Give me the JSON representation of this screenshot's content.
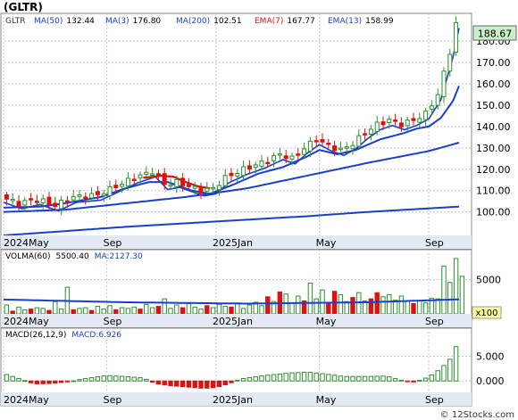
{
  "header": {
    "title": "(GLTR)"
  },
  "footer": {
    "credit": "© 12Stocks.com"
  },
  "colors": {
    "frame": "#888888",
    "grid": "#c8c8c8",
    "price_label_bg": "#c9f0c9",
    "ma_blue": "#1a3fcc",
    "ema_red": "#dd1111",
    "candle_up": "#2c8f2c",
    "bar_up_fill": "#ffffff",
    "bar_up_stroke": "#2c8f2c",
    "bar_down": "#dd1111",
    "axis_bg": "#e4eaf4"
  },
  "chart_data": [
    {
      "type": "candlestick",
      "legend": [
        {
          "label": "GLTR",
          "color": "#333333"
        },
        {
          "label": "MA(50)",
          "value": "132.44",
          "color": "#1a3fcc"
        },
        {
          "label": "MA(3)",
          "value": "176.80",
          "color": "#1a3fcc"
        },
        {
          "label": "MA(200)",
          "value": "102.51",
          "color": "#1a3fcc"
        },
        {
          "label": "EMA(7)",
          "value": "167.77",
          "color": "#dd1111"
        },
        {
          "label": "EMA(13)",
          "value": "158.99",
          "color": "#1a3fcc"
        }
      ],
      "last_price_label": "188.67",
      "last_price": 188.67,
      "ylim": [
        89,
        193
      ],
      "yticks": [
        100,
        110,
        120,
        130,
        140,
        150,
        160,
        170,
        180
      ],
      "ytick_labels": [
        "100.00",
        "110.00",
        "120.00",
        "130.00",
        "140.00",
        "150.00",
        "160.00",
        "170.00",
        "180.00"
      ],
      "xticks": [
        {
          "label": "2024May",
          "week": 0
        },
        {
          "label": "Sep",
          "week": 17
        },
        {
          "label": "2025Jan",
          "week": 35
        },
        {
          "label": "May",
          "week": 52
        },
        {
          "label": "Sep",
          "week": 70
        }
      ],
      "weeks": 75,
      "close_anchors": [
        [
          0,
          107
        ],
        [
          3,
          104
        ],
        [
          6,
          106
        ],
        [
          9,
          103
        ],
        [
          12,
          107
        ],
        [
          16,
          108
        ],
        [
          19,
          112
        ],
        [
          22,
          116
        ],
        [
          25,
          119
        ],
        [
          27,
          113
        ],
        [
          29,
          114
        ],
        [
          31,
          112
        ],
        [
          33,
          110
        ],
        [
          35,
          111
        ],
        [
          37,
          116
        ],
        [
          40,
          120
        ],
        [
          43,
          123
        ],
        [
          46,
          127
        ],
        [
          48,
          125
        ],
        [
          50,
          130
        ],
        [
          52,
          134
        ],
        [
          54,
          131
        ],
        [
          56,
          129
        ],
        [
          58,
          132
        ],
        [
          60,
          137
        ],
        [
          62,
          141
        ],
        [
          64,
          143
        ],
        [
          66,
          141
        ],
        [
          68,
          143
        ],
        [
          70,
          146
        ],
        [
          72,
          155
        ],
        [
          73,
          165
        ],
        [
          74,
          175
        ],
        [
          75,
          188.67
        ]
      ],
      "ma_anchors": {
        "MA(200)": [
          [
            0,
            89
          ],
          [
            10,
            91
          ],
          [
            20,
            93
          ],
          [
            35,
            95.5
          ],
          [
            50,
            98
          ],
          [
            60,
            100
          ],
          [
            75,
            102.51
          ]
        ],
        "MA(50)": [
          [
            0,
            100
          ],
          [
            10,
            101
          ],
          [
            20,
            104
          ],
          [
            30,
            107
          ],
          [
            40,
            111
          ],
          [
            50,
            117
          ],
          [
            60,
            123
          ],
          [
            70,
            128.5
          ],
          [
            75,
            132.44
          ]
        ],
        "EMA(13)": [
          [
            0,
            102
          ],
          [
            6,
            102.5
          ],
          [
            10,
            104
          ],
          [
            16,
            107
          ],
          [
            20,
            111
          ],
          [
            24,
            114
          ],
          [
            27,
            114
          ],
          [
            31,
            110
          ],
          [
            34,
            108.5
          ],
          [
            38,
            113
          ],
          [
            42,
            118
          ],
          [
            46,
            121
          ],
          [
            50,
            126
          ],
          [
            52,
            129
          ],
          [
            55,
            127
          ],
          [
            58,
            129
          ],
          [
            62,
            134
          ],
          [
            66,
            137
          ],
          [
            68,
            139
          ],
          [
            70,
            140
          ],
          [
            72,
            144
          ],
          [
            74,
            152
          ],
          [
            75,
            158.99
          ]
        ],
        "EMA(7)": [
          [
            23,
            116
          ],
          [
            26,
            117
          ],
          [
            28,
            116.5
          ],
          [
            30,
            114
          ],
          [
            32,
            112
          ],
          [
            34,
            111
          ]
        ]
      },
      "volume": {
        "title": "VOLMA(60)",
        "last": "5500.40",
        "ma_label": "MA:2127.30",
        "ylim": [
          0,
          9000
        ],
        "yticks": [
          5000
        ],
        "ytick_labels": [
          "5000"
        ],
        "multiplier_label": "x100",
        "ma_anchors": [
          [
            0,
            2100
          ],
          [
            20,
            1700
          ],
          [
            40,
            1500
          ],
          [
            60,
            1700
          ],
          [
            75,
            2127.3
          ]
        ],
        "bars": [
          {
            "v": 1300,
            "up": true
          },
          {
            "v": 400,
            "up": false
          },
          {
            "v": 1000,
            "up": true
          },
          {
            "v": 600,
            "up": true
          },
          {
            "v": 700,
            "up": false
          },
          {
            "v": 900,
            "up": true
          },
          {
            "v": 800,
            "up": true
          },
          {
            "v": 500,
            "up": false
          },
          {
            "v": 1800,
            "up": true
          },
          {
            "v": 700,
            "up": true
          },
          {
            "v": 3900,
            "up": true
          },
          {
            "v": 600,
            "up": false
          },
          {
            "v": 800,
            "up": true
          },
          {
            "v": 900,
            "up": true
          },
          {
            "v": 500,
            "up": false
          },
          {
            "v": 1100,
            "up": true
          },
          {
            "v": 700,
            "up": true
          },
          {
            "v": 1200,
            "up": true
          },
          {
            "v": 600,
            "up": false
          },
          {
            "v": 900,
            "up": true
          },
          {
            "v": 800,
            "up": true
          },
          {
            "v": 1000,
            "up": true
          },
          {
            "v": 700,
            "up": false
          },
          {
            "v": 1400,
            "up": true
          },
          {
            "v": 900,
            "up": true
          },
          {
            "v": 1100,
            "up": false
          },
          {
            "v": 2200,
            "up": true
          },
          {
            "v": 800,
            "up": true
          },
          {
            "v": 1300,
            "up": true
          },
          {
            "v": 900,
            "up": false
          },
          {
            "v": 1500,
            "up": true
          },
          {
            "v": 1000,
            "up": true
          },
          {
            "v": 700,
            "up": true
          },
          {
            "v": 1200,
            "up": false
          },
          {
            "v": 900,
            "up": true
          },
          {
            "v": 1400,
            "up": true
          },
          {
            "v": 1100,
            "up": true
          },
          {
            "v": 1000,
            "up": false
          },
          {
            "v": 1600,
            "up": true
          },
          {
            "v": 800,
            "up": true
          },
          {
            "v": 1300,
            "up": true
          },
          {
            "v": 1700,
            "up": true
          },
          {
            "v": 1200,
            "up": true
          },
          {
            "v": 2500,
            "up": false
          },
          {
            "v": 1800,
            "up": true
          },
          {
            "v": 3200,
            "up": false
          },
          {
            "v": 2900,
            "up": true
          },
          {
            "v": 1600,
            "up": true
          },
          {
            "v": 2600,
            "up": true
          },
          {
            "v": 1900,
            "up": false
          },
          {
            "v": 4500,
            "up": true
          },
          {
            "v": 2200,
            "up": true
          },
          {
            "v": 3500,
            "up": true
          },
          {
            "v": 1600,
            "up": false
          },
          {
            "v": 3300,
            "up": false
          },
          {
            "v": 2800,
            "up": true
          },
          {
            "v": 1800,
            "up": true
          },
          {
            "v": 2400,
            "up": false
          },
          {
            "v": 3100,
            "up": true
          },
          {
            "v": 1900,
            "up": true
          },
          {
            "v": 2200,
            "up": false
          },
          {
            "v": 3100,
            "up": false
          },
          {
            "v": 2500,
            "up": true
          },
          {
            "v": 2800,
            "up": true
          },
          {
            "v": 2000,
            "up": true
          },
          {
            "v": 2600,
            "up": true
          },
          {
            "v": 1900,
            "up": true
          },
          {
            "v": 1500,
            "up": false
          },
          {
            "v": 1900,
            "up": true
          },
          {
            "v": 1600,
            "up": true
          },
          {
            "v": 2300,
            "up": true
          },
          {
            "v": 2200,
            "up": true
          },
          {
            "v": 7000,
            "up": true
          },
          {
            "v": 4600,
            "up": true
          },
          {
            "v": 8100,
            "up": true
          },
          {
            "v": 5500,
            "up": true
          }
        ]
      },
      "macd": {
        "title": "MACD(26,12,9)",
        "last_label": "MACD:6.926",
        "ylim": [
          -2.3,
          8.5
        ],
        "yticks": [
          0,
          5
        ],
        "ytick_labels": [
          "0.000",
          "5.000"
        ],
        "hist_anchors": [
          [
            0,
            1.5
          ],
          [
            3,
            0.3
          ],
          [
            5,
            -0.6
          ],
          [
            8,
            -0.5
          ],
          [
            11,
            -0.1
          ],
          [
            13,
            0.4
          ],
          [
            17,
            1.1
          ],
          [
            20,
            0.9
          ],
          [
            23,
            0.6
          ],
          [
            25,
            -0.5
          ],
          [
            27,
            -0.9
          ],
          [
            30,
            -1.2
          ],
          [
            33,
            -1.5
          ],
          [
            35,
            -1.3
          ],
          [
            37,
            -0.6
          ],
          [
            39,
            0.4
          ],
          [
            43,
            1.1
          ],
          [
            47,
            1.6
          ],
          [
            50,
            1.8
          ],
          [
            53,
            1.4
          ],
          [
            56,
            0.9
          ],
          [
            60,
            0.9
          ],
          [
            63,
            1.0
          ],
          [
            65,
            0.3
          ],
          [
            67,
            -0.3
          ],
          [
            68,
            -0.1
          ],
          [
            70,
            0.8
          ],
          [
            72,
            2.5
          ],
          [
            74,
            5.0
          ],
          [
            75,
            6.926
          ]
        ]
      }
    }
  ]
}
